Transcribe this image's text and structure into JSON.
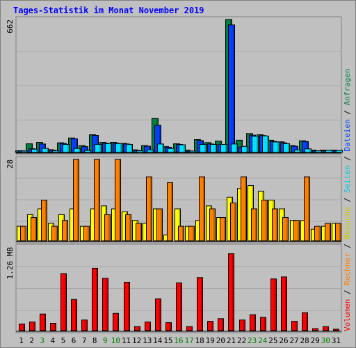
{
  "chart_data": {
    "type": "bar",
    "title": "Tages-Statistik im Monat November 2019",
    "x": [
      "1",
      "2",
      "3",
      "4",
      "5",
      "6",
      "7",
      "8",
      "9",
      "10",
      "11",
      "12",
      "13",
      "14",
      "15",
      "16",
      "17",
      "18",
      "19",
      "20",
      "21",
      "22",
      "23",
      "24",
      "25",
      "26",
      "27",
      "28",
      "29",
      "30",
      "31"
    ],
    "weekend_days": [
      "3",
      "9",
      "10",
      "16",
      "17",
      "23",
      "24",
      "30"
    ],
    "panels": [
      {
        "max_label": "662",
        "ylim": [
          0,
          662
        ],
        "series": [
          {
            "name": "Anfragen",
            "color": "#008040",
            "values": [
              8,
              43,
              50,
              14,
              48,
              72,
              34,
              88,
              50,
              50,
              45,
              13,
              34,
              169,
              29,
              43,
              11,
              64,
              49,
              56,
              662,
              61,
              94,
              88,
              61,
              53,
              34,
              58,
              11,
              11,
              11
            ]
          },
          {
            "name": "Dateien",
            "color": "#0040ff",
            "values": [
              8,
              18,
              42,
              11,
              45,
              68,
              29,
              85,
              46,
              46,
              42,
              10,
              31,
              135,
              26,
              40,
              7,
              59,
              42,
              39,
              635,
              27,
              86,
              84,
              55,
              48,
              31,
              54,
              8,
              8,
              8
            ]
          },
          {
            "name": "Seiten",
            "color": "#00e0ff",
            "values": [
              6,
              16,
              20,
              8,
              40,
              20,
              10,
              40,
              44,
              44,
              40,
              8,
              12,
              42,
              20,
              38,
              6,
              40,
              40,
              40,
              42,
              30,
              80,
              82,
              52,
              44,
              12,
              18,
              8,
              10,
              10
            ]
          }
        ]
      },
      {
        "max_label": "28",
        "ylim": [
          0,
          28
        ],
        "series": [
          {
            "name": "Besuche",
            "color": "#ffff00",
            "values": [
              5,
              9,
              11,
              6,
              9,
              11,
              5,
              11,
              12,
              11,
              10,
              7,
              6,
              11,
              2,
              11,
              5,
              7,
              12,
              8,
              15,
              18,
              19,
              17,
              14,
              11,
              7,
              7,
              4,
              5,
              6
            ]
          },
          {
            "name": "Rechner",
            "color": "#ff8000",
            "values": [
              5,
              8,
              14,
              5,
              7,
              28,
              5,
              28,
              9,
              28,
              9,
              6,
              22,
              11,
              20,
              5,
              5,
              22,
              11,
              8,
              13,
              22,
              11,
              14,
              11,
              8,
              7,
              22,
              5,
              6,
              6
            ]
          }
        ]
      },
      {
        "max_label": "1.26 MB",
        "ylim": [
          0,
          1.26
        ],
        "series": [
          {
            "name": "Volumen",
            "color": "#ff0000",
            "values": [
              0.1,
              0.13,
              0.25,
              0.11,
              0.86,
              0.47,
              0.16,
              0.94,
              0.79,
              0.26,
              0.73,
              0.06,
              0.13,
              0.48,
              0.12,
              0.72,
              0.06,
              0.8,
              0.14,
              0.18,
              1.16,
              0.16,
              0.24,
              0.2,
              0.78,
              0.81,
              0.14,
              0.27,
              0.03,
              0.06,
              0.02
            ]
          }
        ]
      }
    ],
    "legend": {
      "placement": "right",
      "items": [
        {
          "label": "Volumen",
          "color": "#ff0000"
        },
        {
          "label": "Rechner",
          "color": "#ff8000"
        },
        {
          "label": "Besuche",
          "color": "#cccc00"
        },
        {
          "label": "Seiten",
          "color": "#00c8e0"
        },
        {
          "label": "Dateien",
          "color": "#0040ff"
        },
        {
          "label": "Anfragen",
          "color": "#008040"
        }
      ]
    },
    "colors": {
      "background": "#c0c0c0",
      "weekday_tick": "#000000",
      "weekend_tick": "#008000"
    }
  }
}
